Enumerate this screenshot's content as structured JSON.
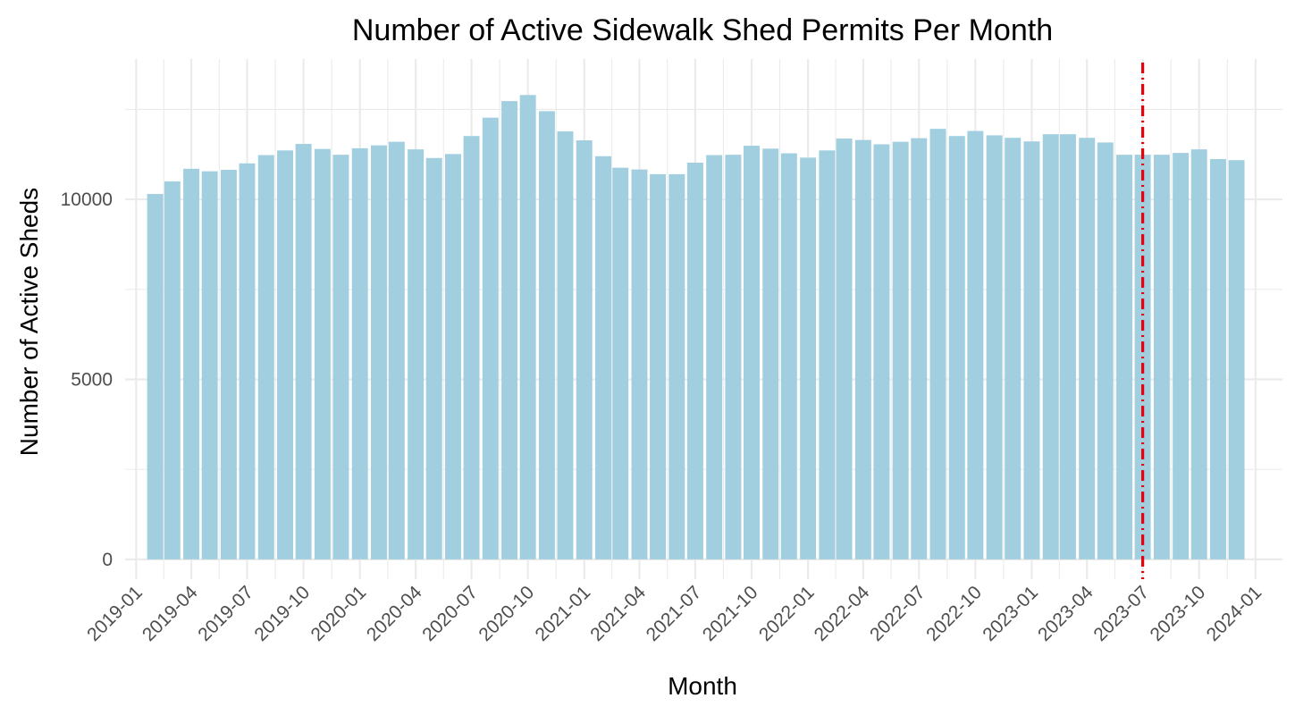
{
  "chart_data": {
    "type": "bar",
    "title": "Number of Active Sidewalk Shed Permits Per Month",
    "xlabel": "Month",
    "ylabel": "Number of Active Sheds",
    "x": [
      "2019-02",
      "2019-03",
      "2019-04",
      "2019-05",
      "2019-06",
      "2019-07",
      "2019-08",
      "2019-09",
      "2019-10",
      "2019-11",
      "2019-12",
      "2020-01",
      "2020-02",
      "2020-03",
      "2020-04",
      "2020-05",
      "2020-06",
      "2020-07",
      "2020-08",
      "2020-09",
      "2020-10",
      "2020-11",
      "2020-12",
      "2021-01",
      "2021-02",
      "2021-03",
      "2021-04",
      "2021-05",
      "2021-06",
      "2021-07",
      "2021-08",
      "2021-09",
      "2021-10",
      "2021-11",
      "2021-12",
      "2022-01",
      "2022-02",
      "2022-03",
      "2022-04",
      "2022-05",
      "2022-06",
      "2022-07",
      "2022-08",
      "2022-09",
      "2022-10",
      "2022-11",
      "2022-12",
      "2023-01",
      "2023-02",
      "2023-03",
      "2023-04",
      "2023-05",
      "2023-06",
      "2023-07",
      "2023-08",
      "2023-09",
      "2023-10",
      "2023-11",
      "2023-12"
    ],
    "values": [
      10150,
      10500,
      10850,
      10780,
      10820,
      11000,
      11230,
      11360,
      11540,
      11400,
      11240,
      11420,
      11500,
      11600,
      11390,
      11150,
      11260,
      11760,
      12270,
      12730,
      12900,
      12450,
      11890,
      11640,
      11200,
      10880,
      10830,
      10700,
      10700,
      11020,
      11230,
      11240,
      11490,
      11410,
      11280,
      11160,
      11360,
      11690,
      11650,
      11530,
      11600,
      11700,
      11960,
      11760,
      11900,
      11780,
      11710,
      11610,
      11810,
      11810,
      11710,
      11580,
      11240,
      11240,
      11240,
      11290,
      11390,
      11120,
      11090
    ],
    "x_ticks": [
      "2019-01",
      "2019-04",
      "2019-07",
      "2019-10",
      "2020-01",
      "2020-04",
      "2020-07",
      "2020-10",
      "2021-01",
      "2021-04",
      "2021-07",
      "2021-10",
      "2022-01",
      "2022-04",
      "2022-07",
      "2022-10",
      "2023-01",
      "2023-04",
      "2023-07",
      "2023-10",
      "2024-01"
    ],
    "y_ticks": [
      0,
      5000,
      10000
    ],
    "ylim": [
      -550,
      13900
    ],
    "xlim": [
      "2018-12-14",
      "2024-02-14"
    ],
    "grid": true,
    "reference_line": {
      "x": "2023-07-01",
      "color": "#e8000b",
      "style": "dot-dash"
    },
    "bar_color": "#a1cfe0"
  }
}
